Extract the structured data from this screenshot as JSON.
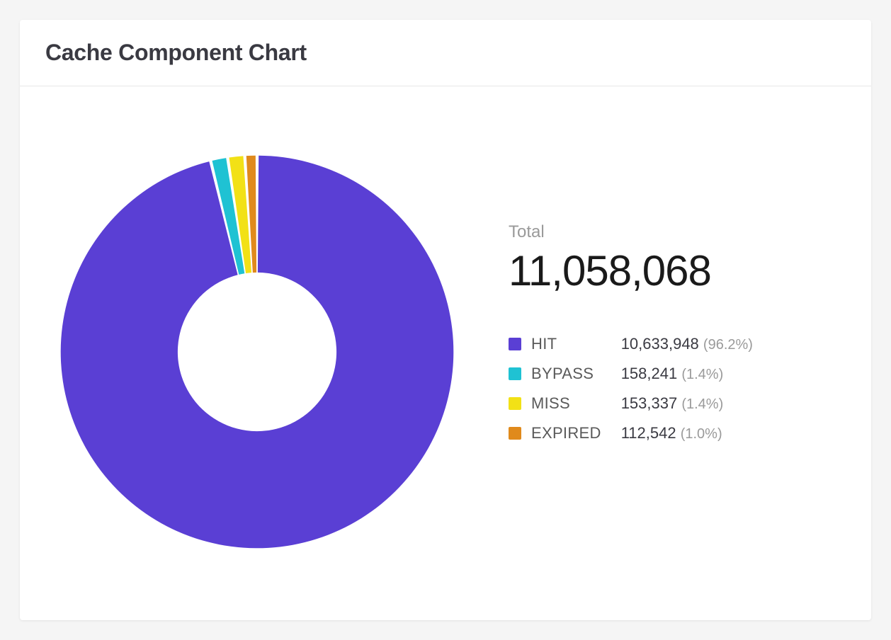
{
  "card": {
    "title": "Cache Component Chart"
  },
  "summary": {
    "total_label": "Total",
    "total_value": "11,058,068"
  },
  "chart": {
    "type": "donut",
    "size": 590,
    "outer_radius": 47,
    "inner_radius": 19,
    "gap_deg": 0.9,
    "background_color": "#ffffff",
    "start_angle_deg": -90,
    "slices": [
      {
        "label": "HIT",
        "value": 10633948,
        "value_display": "10,633,948",
        "percent": 96.2,
        "percent_display": "(96.2%)",
        "color": "#5a3fd4"
      },
      {
        "label": "BYPASS",
        "value": 158241,
        "value_display": "158,241",
        "percent": 1.4,
        "percent_display": "(1.4%)",
        "color": "#1fc2d3"
      },
      {
        "label": "MISS",
        "value": 153337,
        "value_display": "153,337",
        "percent": 1.4,
        "percent_display": "(1.4%)",
        "color": "#f2e116"
      },
      {
        "label": "EXPIRED",
        "value": 112542,
        "value_display": "112,542",
        "percent": 1.0,
        "percent_display": "(1.0%)",
        "color": "#e08a1c"
      }
    ]
  },
  "legend_colors": {
    "label_color": "#5a5a5a",
    "value_color": "#3a3a42",
    "percent_color": "#9a9a9a"
  }
}
